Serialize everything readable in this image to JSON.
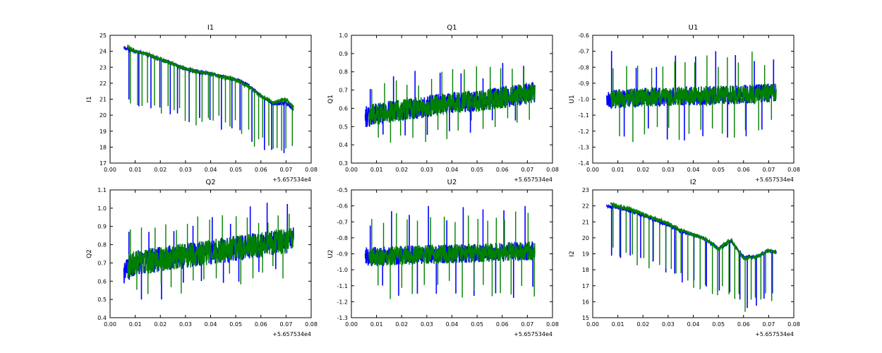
{
  "chart_data": [
    {
      "type": "line",
      "title": "I1",
      "xlabel": "",
      "ylabel": "I1",
      "x_offset_label": "+5.657534e4",
      "xlim": [
        0.0,
        0.08
      ],
      "ylim": [
        17,
        25
      ],
      "xticks": [
        "0.00",
        "0.01",
        "0.02",
        "0.03",
        "0.04",
        "0.05",
        "0.06",
        "0.07",
        "0.08"
      ],
      "yticks": [
        "17",
        "18",
        "19",
        "20",
        "21",
        "22",
        "23",
        "24",
        "25"
      ],
      "grid": false,
      "series": [
        {
          "color": "#0000ff",
          "x": [
            0.0055,
            0.01,
            0.015,
            0.02,
            0.025,
            0.03,
            0.035,
            0.04,
            0.045,
            0.05,
            0.055,
            0.06,
            0.065,
            0.07,
            0.073
          ],
          "values": [
            24.2,
            24.0,
            23.8,
            23.5,
            23.2,
            22.9,
            22.7,
            22.6,
            22.4,
            22.2,
            21.9,
            21.2,
            20.7,
            20.8,
            20.3
          ],
          "noise": 0.1,
          "spikes": {
            "dir": "down",
            "depth": [
              2.8,
              3.4
            ],
            "every": 0.004
          }
        },
        {
          "color": "#008000",
          "x": [
            0.007,
            0.01,
            0.015,
            0.02,
            0.025,
            0.03,
            0.035,
            0.04,
            0.045,
            0.05,
            0.055,
            0.06,
            0.065,
            0.07,
            0.073
          ],
          "values": [
            24.3,
            24.0,
            23.8,
            23.5,
            23.2,
            22.9,
            22.7,
            22.6,
            22.4,
            22.2,
            21.8,
            21.2,
            20.8,
            21.0,
            20.5
          ],
          "noise": 0.12,
          "spikes": {
            "dir": "down",
            "depth": [
              2.5,
              3.5
            ],
            "every": 0.0022
          }
        }
      ]
    },
    {
      "type": "line",
      "title": "Q1",
      "xlabel": "",
      "ylabel": "Q1",
      "x_offset_label": "+5.657534e4",
      "xlim": [
        0.0,
        0.08
      ],
      "ylim": [
        0.3,
        1.0
      ],
      "xticks": [
        "0.00",
        "0.01",
        "0.02",
        "0.03",
        "0.04",
        "0.05",
        "0.06",
        "0.07",
        "0.08"
      ],
      "yticks": [
        "0.3",
        "0.4",
        "0.5",
        "0.6",
        "0.7",
        "0.8",
        "0.9",
        "1.0"
      ],
      "grid": false,
      "series": [
        {
          "color": "#0000ff",
          "x": [
            0.0055,
            0.01,
            0.02,
            0.03,
            0.04,
            0.05,
            0.06,
            0.07,
            0.073
          ],
          "values": [
            0.55,
            0.57,
            0.59,
            0.61,
            0.63,
            0.64,
            0.66,
            0.68,
            0.69
          ],
          "noise": 0.06,
          "spikes": {
            "dir": "both",
            "depth": [
              0.15,
              0.22
            ],
            "every": 0.004
          }
        },
        {
          "color": "#008000",
          "x": [
            0.007,
            0.01,
            0.02,
            0.03,
            0.04,
            0.05,
            0.06,
            0.07,
            0.073
          ],
          "values": [
            0.56,
            0.57,
            0.59,
            0.61,
            0.63,
            0.64,
            0.66,
            0.68,
            0.69
          ],
          "noise": 0.06,
          "spikes": {
            "dir": "both",
            "depth": [
              0.14,
              0.22
            ],
            "every": 0.0022
          }
        }
      ]
    },
    {
      "type": "line",
      "title": "U1",
      "xlabel": "",
      "ylabel": "U1",
      "x_offset_label": "+5.657534e4",
      "xlim": [
        0.0,
        0.08
      ],
      "ylim": [
        -1.4,
        -0.6
      ],
      "xticks": [
        "0.00",
        "0.01",
        "0.02",
        "0.03",
        "0.04",
        "0.05",
        "0.06",
        "0.07",
        "0.08"
      ],
      "yticks": [
        "-1.4",
        "-1.3",
        "-1.2",
        "-1.1",
        "-1.0",
        "-0.9",
        "-0.8",
        "-0.7",
        "-0.6"
      ],
      "grid": false,
      "series": [
        {
          "color": "#0000ff",
          "x": [
            0.0055,
            0.02,
            0.04,
            0.06,
            0.073
          ],
          "values": [
            -1.0,
            -0.99,
            -0.98,
            -0.97,
            -0.96
          ],
          "noise": 0.06,
          "spikes": {
            "dir": "both",
            "depth": [
              0.25,
              0.33
            ],
            "every": 0.004
          }
        },
        {
          "color": "#008000",
          "x": [
            0.007,
            0.02,
            0.04,
            0.06,
            0.073
          ],
          "values": [
            -1.0,
            -0.99,
            -0.98,
            -0.97,
            -0.96
          ],
          "noise": 0.06,
          "spikes": {
            "dir": "both",
            "depth": [
              0.22,
              0.3
            ],
            "every": 0.0022
          }
        }
      ]
    },
    {
      "type": "line",
      "title": "Q2",
      "xlabel": "",
      "ylabel": "Q2",
      "x_offset_label": "+5.657534e4",
      "xlim": [
        0.0,
        0.08
      ],
      "ylim": [
        0.4,
        1.1
      ],
      "xticks": [
        "0.00",
        "0.01",
        "0.02",
        "0.03",
        "0.04",
        "0.05",
        "0.06",
        "0.07",
        "0.08"
      ],
      "yticks": [
        "0.4",
        "0.5",
        "0.6",
        "0.7",
        "0.8",
        "0.9",
        "1.0",
        "1.1"
      ],
      "grid": false,
      "series": [
        {
          "color": "#0000ff",
          "x": [
            0.0055,
            0.01,
            0.02,
            0.03,
            0.04,
            0.05,
            0.06,
            0.07,
            0.073
          ],
          "values": [
            0.65,
            0.7,
            0.72,
            0.74,
            0.76,
            0.78,
            0.8,
            0.82,
            0.83
          ],
          "noise": 0.07,
          "spikes": {
            "dir": "both",
            "depth": [
              0.16,
              0.24
            ],
            "every": 0.004
          }
        },
        {
          "color": "#008000",
          "x": [
            0.007,
            0.01,
            0.02,
            0.03,
            0.04,
            0.05,
            0.06,
            0.07,
            0.073
          ],
          "values": [
            0.68,
            0.7,
            0.72,
            0.74,
            0.76,
            0.78,
            0.8,
            0.82,
            0.83
          ],
          "noise": 0.07,
          "spikes": {
            "dir": "both",
            "depth": [
              0.15,
              0.24
            ],
            "every": 0.0022
          }
        }
      ]
    },
    {
      "type": "line",
      "title": "U2",
      "xlabel": "",
      "ylabel": "U2",
      "x_offset_label": "+5.657534e4",
      "xlim": [
        0.0,
        0.08
      ],
      "ylim": [
        -1.3,
        -0.5
      ],
      "xticks": [
        "0.00",
        "0.01",
        "0.02",
        "0.03",
        "0.04",
        "0.05",
        "0.06",
        "0.07",
        "0.08"
      ],
      "yticks": [
        "-1.3",
        "-1.2",
        "-1.1",
        "-1.0",
        "-0.9",
        "-0.8",
        "-0.7",
        "-0.6",
        "-0.5"
      ],
      "grid": false,
      "series": [
        {
          "color": "#0000ff",
          "x": [
            0.0055,
            0.02,
            0.04,
            0.06,
            0.073
          ],
          "values": [
            -0.92,
            -0.91,
            -0.9,
            -0.89,
            -0.88
          ],
          "noise": 0.06,
          "spikes": {
            "dir": "both",
            "depth": [
              0.25,
              0.33
            ],
            "every": 0.004
          }
        },
        {
          "color": "#008000",
          "x": [
            0.007,
            0.02,
            0.04,
            0.06,
            0.073
          ],
          "values": [
            -0.92,
            -0.91,
            -0.9,
            -0.89,
            -0.88
          ],
          "noise": 0.06,
          "spikes": {
            "dir": "both",
            "depth": [
              0.22,
              0.3
            ],
            "every": 0.0022
          }
        }
      ]
    },
    {
      "type": "line",
      "title": "I2",
      "xlabel": "",
      "ylabel": "I2",
      "x_offset_label": "+5.657534e4",
      "xlim": [
        0.0,
        0.08
      ],
      "ylim": [
        15,
        23
      ],
      "xticks": [
        "0.00",
        "0.01",
        "0.02",
        "0.03",
        "0.04",
        "0.05",
        "0.06",
        "0.07",
        "0.08"
      ],
      "yticks": [
        "15",
        "16",
        "17",
        "18",
        "19",
        "20",
        "21",
        "22",
        "23"
      ],
      "grid": false,
      "series": [
        {
          "color": "#0000ff",
          "x": [
            0.0055,
            0.01,
            0.015,
            0.02,
            0.025,
            0.03,
            0.035,
            0.04,
            0.045,
            0.05,
            0.055,
            0.06,
            0.065,
            0.07,
            0.073
          ],
          "values": [
            22.0,
            21.9,
            21.7,
            21.4,
            21.1,
            20.8,
            20.4,
            20.2,
            19.9,
            19.3,
            19.8,
            18.8,
            18.8,
            19.2,
            19.1
          ],
          "noise": 0.1,
          "spikes": {
            "dir": "down",
            "depth": [
              2.6,
              3.2
            ],
            "every": 0.004
          }
        },
        {
          "color": "#008000",
          "x": [
            0.007,
            0.01,
            0.015,
            0.02,
            0.025,
            0.03,
            0.035,
            0.04,
            0.045,
            0.05,
            0.055,
            0.06,
            0.065,
            0.07,
            0.073
          ],
          "values": [
            22.1,
            22.0,
            21.8,
            21.5,
            21.2,
            20.9,
            20.5,
            20.2,
            19.9,
            19.3,
            19.9,
            18.7,
            18.8,
            19.2,
            19.1
          ],
          "noise": 0.12,
          "spikes": {
            "dir": "down",
            "depth": [
              2.5,
              3.4
            ],
            "every": 0.0022
          }
        }
      ]
    }
  ]
}
